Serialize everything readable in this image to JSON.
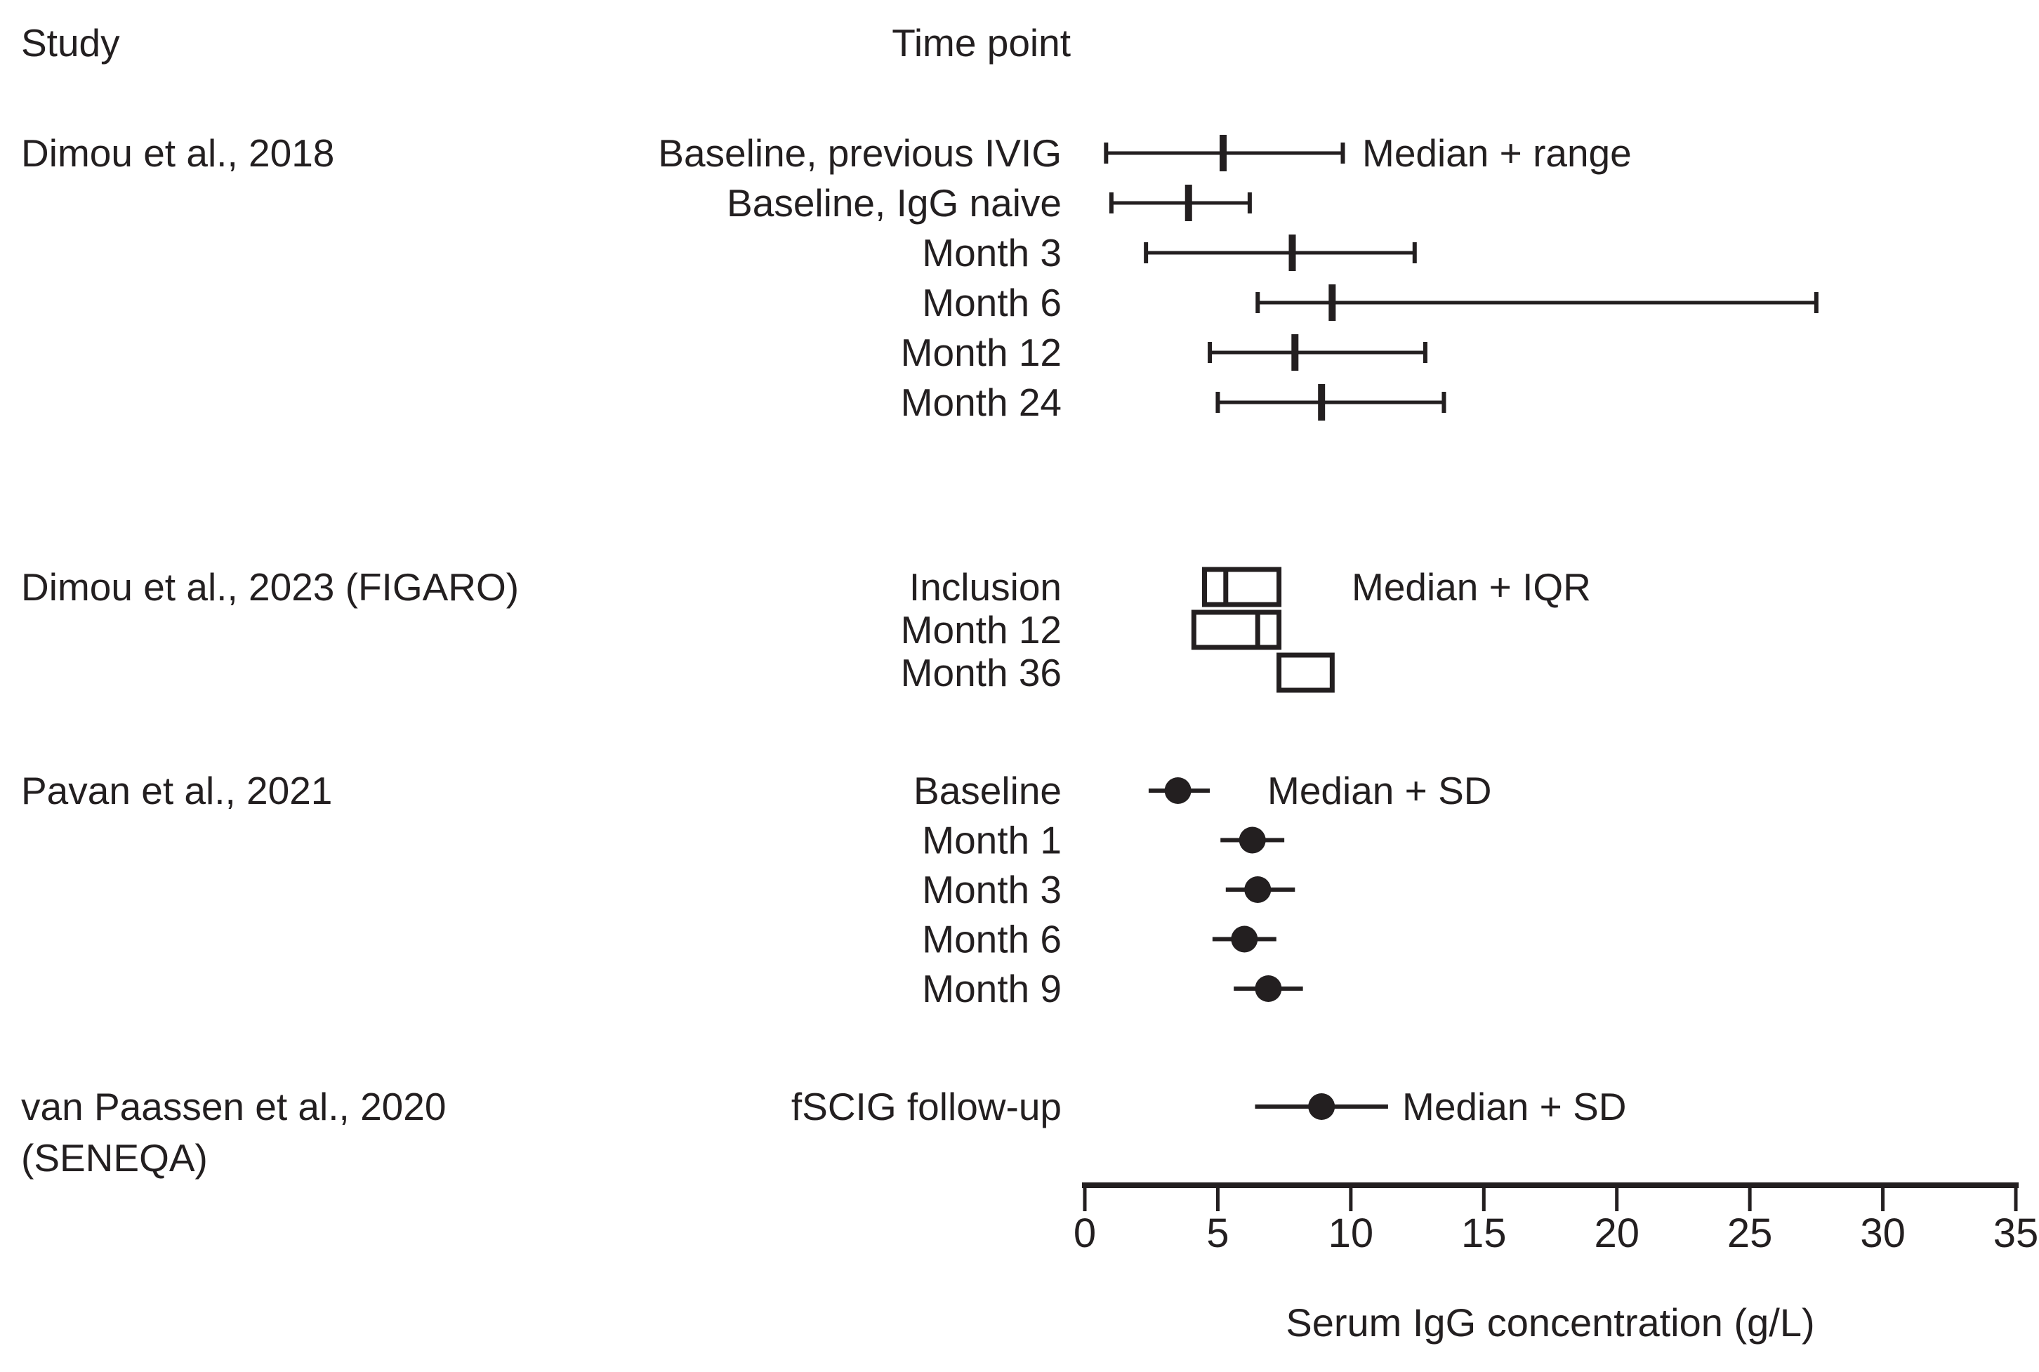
{
  "header": {
    "study": "Study",
    "time_point": "Time point"
  },
  "colors": {
    "ink": "#231f20",
    "background": "#ffffff"
  },
  "chart_data": {
    "type": "forest",
    "xlabel": "Serum IgG concentration (g/L)",
    "xlim": [
      0,
      35
    ],
    "xticks": [
      0,
      5,
      10,
      15,
      20,
      25,
      30,
      35
    ],
    "grid": false,
    "groups": [
      {
        "study": "Dimou et al., 2018",
        "legend": "Median + range",
        "style": "median-range",
        "rows": [
          {
            "label": "Baseline, previous IVIG",
            "median": 5.2,
            "low": 0.8,
            "high": 9.7
          },
          {
            "label": "Baseline, IgG naive",
            "median": 3.9,
            "low": 1.0,
            "high": 6.2
          },
          {
            "label": "Month 3",
            "median": 7.8,
            "low": 2.3,
            "high": 12.4
          },
          {
            "label": "Month 6",
            "median": 9.3,
            "low": 6.5,
            "high": 27.5
          },
          {
            "label": "Month 12",
            "median": 7.9,
            "low": 4.7,
            "high": 12.8
          },
          {
            "label": "Month 24",
            "median": 8.9,
            "low": 5.0,
            "high": 13.5
          }
        ]
      },
      {
        "study": "Dimou et al., 2023 (FIGARO)",
        "legend": "Median + IQR",
        "style": "box",
        "rows": [
          {
            "label": "Inclusion",
            "median": 5.3,
            "low": 4.5,
            "high": 7.3
          },
          {
            "label": "Month 12",
            "median": 6.5,
            "low": 4.1,
            "high": 7.3
          },
          {
            "label": "Month 36",
            "median": null,
            "low": 7.3,
            "high": 9.3
          }
        ]
      },
      {
        "study": "Pavan et al., 2021",
        "legend": "Median + SD",
        "style": "dot",
        "rows": [
          {
            "label": "Baseline",
            "median": 3.5,
            "low": 2.4,
            "high": 4.7
          },
          {
            "label": "Month 1",
            "median": 6.3,
            "low": 5.1,
            "high": 7.5
          },
          {
            "label": "Month 3",
            "median": 6.5,
            "low": 5.3,
            "high": 7.9
          },
          {
            "label": "Month 6",
            "median": 6.0,
            "low": 4.8,
            "high": 7.2
          },
          {
            "label": "Month 9",
            "median": 6.9,
            "low": 5.6,
            "high": 8.2
          }
        ]
      },
      {
        "study": "van Paassen et al., 2020 (SENEQA)",
        "study_lines": [
          "van Paassen et al., 2020",
          "(SENEQA)"
        ],
        "legend": "Median + SD",
        "style": "dot",
        "rows": [
          {
            "label": "fSCIG follow-up",
            "median": 8.9,
            "low": 6.4,
            "high": 11.4
          }
        ]
      }
    ]
  }
}
